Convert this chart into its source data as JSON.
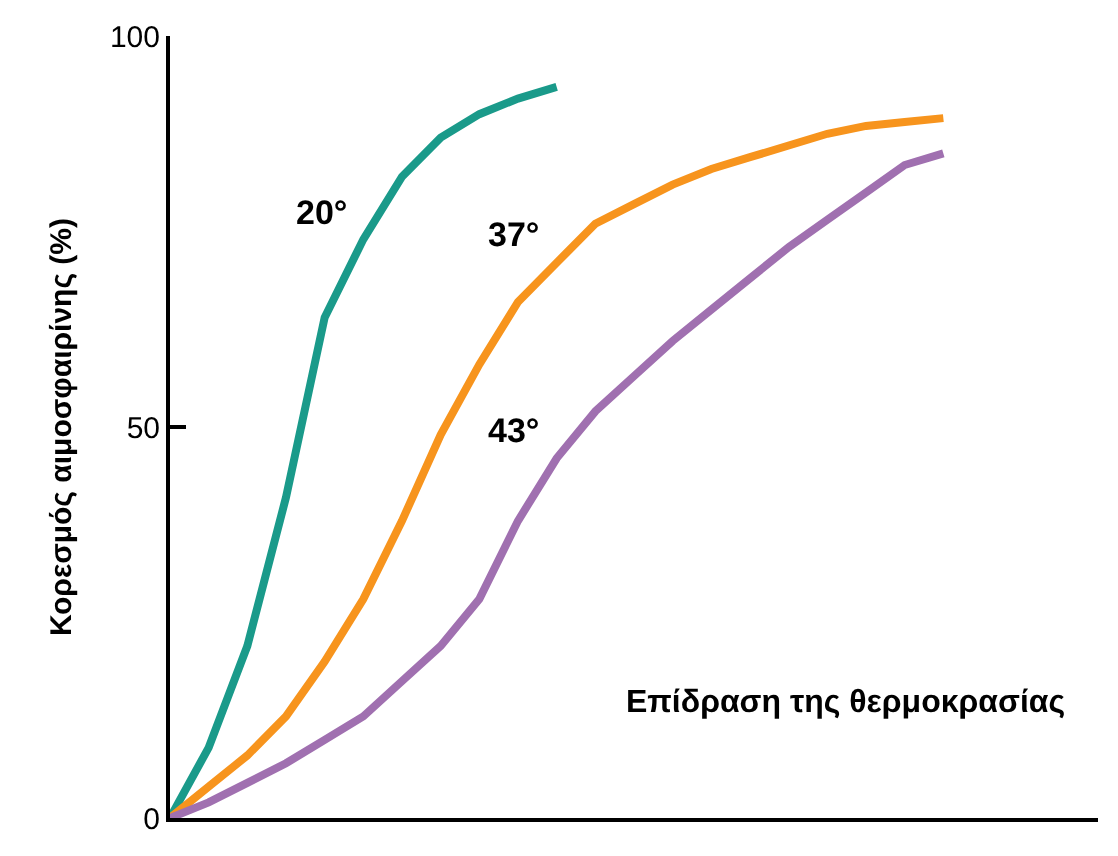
{
  "chart_data": {
    "type": "line",
    "ylabel": "Κορεσμός αιμοσφαιρίνης (%)",
    "categories": [
      null,
      null,
      null,
      null,
      null,
      null,
      null,
      null,
      null,
      null,
      null,
      null,
      null,
      null,
      null,
      null,
      null,
      null,
      null,
      null,
      null,
      null,
      null,
      null,
      null
    ],
    "ylim": [
      0,
      100
    ],
    "yticks": [
      0,
      50,
      100
    ],
    "legend": false,
    "marker": "none",
    "line_style": "solid",
    "series": [
      {
        "name": "20°",
        "color": "#1a9a8a",
        "values": [
          0,
          9,
          22,
          41,
          64,
          74,
          82,
          87,
          90,
          92,
          93.5,
          null,
          null,
          null,
          null,
          null,
          null,
          null,
          null,
          null,
          null,
          null,
          null,
          null,
          null
        ]
      },
      {
        "name": "37°",
        "color": "#f7941d",
        "values": [
          0,
          4,
          8,
          13,
          20,
          28,
          38,
          49,
          58,
          66,
          71,
          76,
          78.5,
          81,
          83,
          84.5,
          86,
          87.5,
          88.5,
          89,
          89.5,
          null,
          null,
          null,
          null
        ]
      },
      {
        "name": "43°",
        "color": "#a070b0",
        "values": [
          0,
          2,
          4.5,
          7,
          10,
          13,
          17.5,
          22,
          28,
          38,
          46,
          52,
          56.5,
          61,
          65,
          69,
          73,
          76.5,
          80,
          83.5,
          85,
          null,
          null,
          null,
          null
        ]
      }
    ],
    "annotations": [
      "Επίδραση της θερμοκρασίας"
    ]
  }
}
